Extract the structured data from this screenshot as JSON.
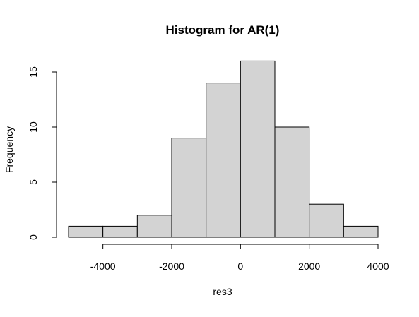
{
  "chart_data": {
    "type": "bar",
    "title": "Histogram for AR(1)",
    "xlabel": "res3",
    "ylabel": "Frequency",
    "bins": [
      {
        "from": -5000,
        "to": -4000,
        "count": 1
      },
      {
        "from": -4000,
        "to": -3000,
        "count": 1
      },
      {
        "from": -3000,
        "to": -2000,
        "count": 2
      },
      {
        "from": -2000,
        "to": -1000,
        "count": 9
      },
      {
        "from": -1000,
        "to": 0,
        "count": 14
      },
      {
        "from": 0,
        "to": 1000,
        "count": 16
      },
      {
        "from": 1000,
        "to": 2000,
        "count": 10
      },
      {
        "from": 2000,
        "to": 3000,
        "count": 3
      },
      {
        "from": 3000,
        "to": 4000,
        "count": 1
      }
    ],
    "xlim": [
      -5000,
      4000
    ],
    "ylim": [
      0,
      16
    ],
    "x_ticks": [
      -4000,
      -2000,
      0,
      2000,
      4000
    ],
    "x_tick_labels": [
      "-4000",
      "-2000",
      "0",
      "2000",
      "4000"
    ],
    "y_ticks": [
      0,
      5,
      10,
      15
    ],
    "y_tick_labels": [
      "0",
      "5",
      "10",
      "15"
    ],
    "bar_color": "#d3d3d3",
    "grid": false
  }
}
